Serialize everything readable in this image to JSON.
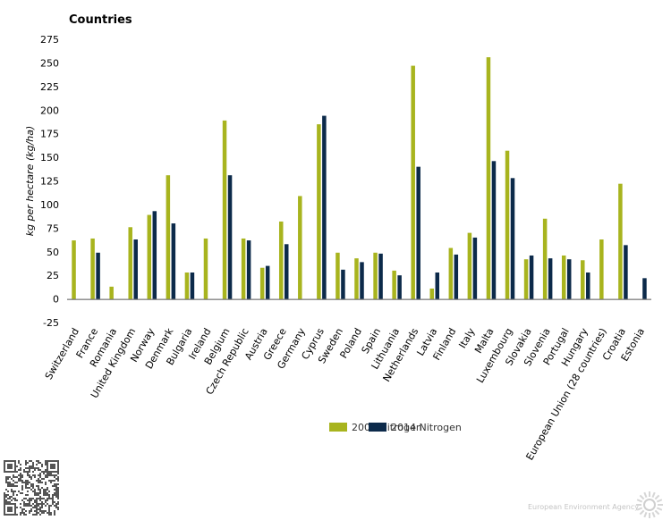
{
  "chart_data": {
    "type": "bar",
    "title": "Countries",
    "ylabel": "kg per hectare (kg/ha)",
    "ylim": [
      -25,
      275
    ],
    "yticks": [
      -25,
      0,
      25,
      50,
      75,
      100,
      125,
      150,
      175,
      200,
      225,
      250,
      275
    ],
    "categories": [
      "Switzerland",
      "France",
      "Romania",
      "United Kingdom",
      "Norway",
      "Denmark",
      "Bulgaria",
      "Ireland",
      "Belgium",
      "Czech Republic",
      "Austria",
      "Greece",
      "Germany",
      "Cyprus",
      "Sweden",
      "Poland",
      "Spain",
      "Lithuania",
      "Netherlands",
      "Latvia",
      "Finland",
      "Italy",
      "Malta",
      "Luxembourg",
      "Slovakia",
      "Slovenia",
      "Portugal",
      "Hungary",
      "European Union (28 countries)",
      "Croatia",
      "Estonia"
    ],
    "series": [
      {
        "name": "2000 Nitrogen",
        "color": "#a8b41e",
        "values": [
          62,
          64,
          13,
          76,
          89,
          131,
          28,
          64,
          189,
          64,
          33,
          82,
          109,
          185,
          49,
          43,
          49,
          30,
          247,
          11,
          54,
          70,
          256,
          157,
          42,
          85,
          46,
          41,
          63,
          122,
          null
        ]
      },
      {
        "name": "2014 Nitrogen",
        "color": "#0c2a4a",
        "values": [
          null,
          49,
          0,
          63,
          93,
          80,
          28,
          0,
          131,
          62,
          35,
          58,
          null,
          194,
          31,
          39,
          48,
          25,
          140,
          28,
          47,
          65,
          146,
          128,
          46,
          43,
          42,
          28,
          null,
          57,
          22
        ]
      }
    ],
    "legend_position": "bottom",
    "grid": false
  },
  "footer": {
    "credit": "European Environment Agency"
  }
}
